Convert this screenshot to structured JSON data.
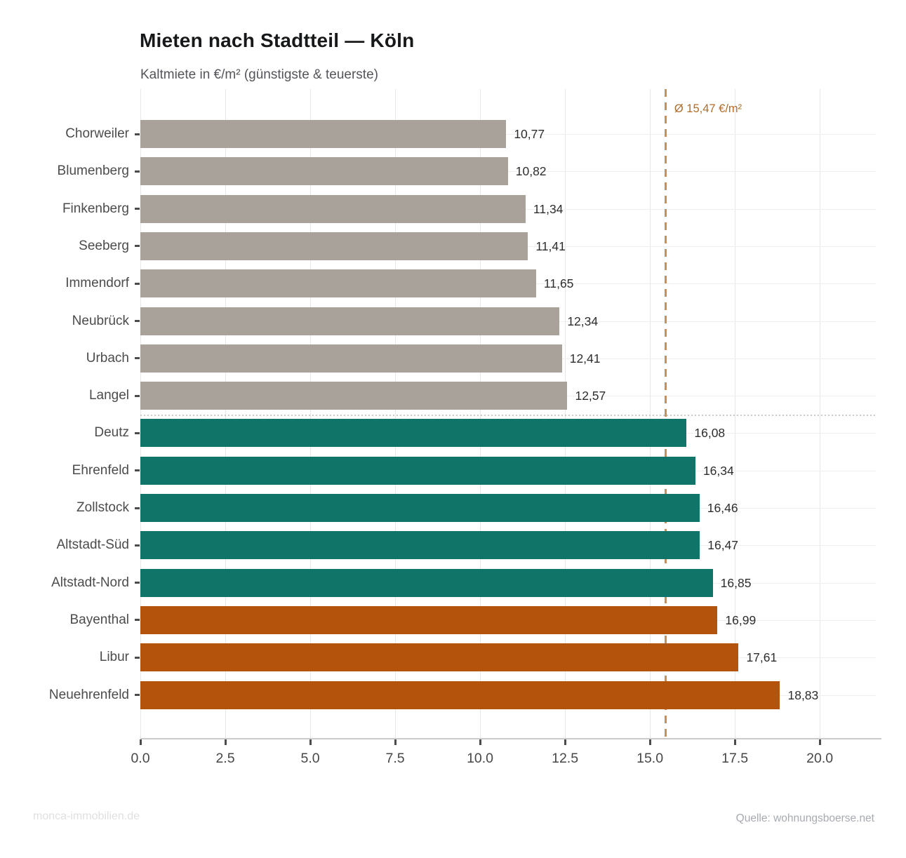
{
  "chart_data": {
    "type": "bar",
    "orientation": "horizontal",
    "title": "Mieten nach Stadtteil — Köln",
    "subtitle": "Kaltmiete in €/m² (günstigste & teuerste)",
    "categories": [
      "Chorweiler",
      "Blumenberg",
      "Finkenberg",
      "Seeberg",
      "Immendorf",
      "Neubrück",
      "Urbach",
      "Langel",
      "Deutz",
      "Ehrenfeld",
      "Zollstock",
      "Altstadt-Süd",
      "Altstadt-Nord",
      "Bayenthal",
      "Libur",
      "Neuehrenfeld"
    ],
    "values": [
      10.77,
      10.82,
      11.34,
      11.41,
      11.65,
      12.34,
      12.41,
      12.57,
      16.08,
      16.34,
      16.46,
      16.47,
      16.85,
      16.99,
      17.61,
      18.83
    ],
    "value_labels": [
      "10,77",
      "10,82",
      "11,34",
      "11,41",
      "11,65",
      "12,34",
      "12,41",
      "12,57",
      "16,08",
      "16,34",
      "16,46",
      "16,47",
      "16,85",
      "16,99",
      "17,61",
      "18,83"
    ],
    "groups": [
      "low",
      "low",
      "low",
      "low",
      "low",
      "low",
      "low",
      "low",
      "mid",
      "mid",
      "mid",
      "mid",
      "mid",
      "high",
      "high",
      "high"
    ],
    "group_colors": {
      "low": "#a8a29b",
      "mid": "#107568",
      "high": "#b4530c"
    },
    "x_ticks": [
      0,
      2.5,
      5,
      7.5,
      10,
      12.5,
      15,
      17.5,
      20
    ],
    "x_tick_labels": [
      "0.0",
      "2.5",
      "5.0",
      "7.5",
      "10.0",
      "12.5",
      "15.0",
      "17.5",
      "20.0"
    ],
    "xlim": [
      0,
      21.65
    ],
    "grid": true,
    "legend": false,
    "mean_line": {
      "value": 15.47,
      "label": "Ø 15,47 €/m²",
      "line_color": "#c89058",
      "label_color": "#b06e2b"
    },
    "separator_after_category": "Langel"
  },
  "footer": {
    "left": "monca-immobilien.de",
    "right": "Quelle: wohnungsboerse.net"
  }
}
